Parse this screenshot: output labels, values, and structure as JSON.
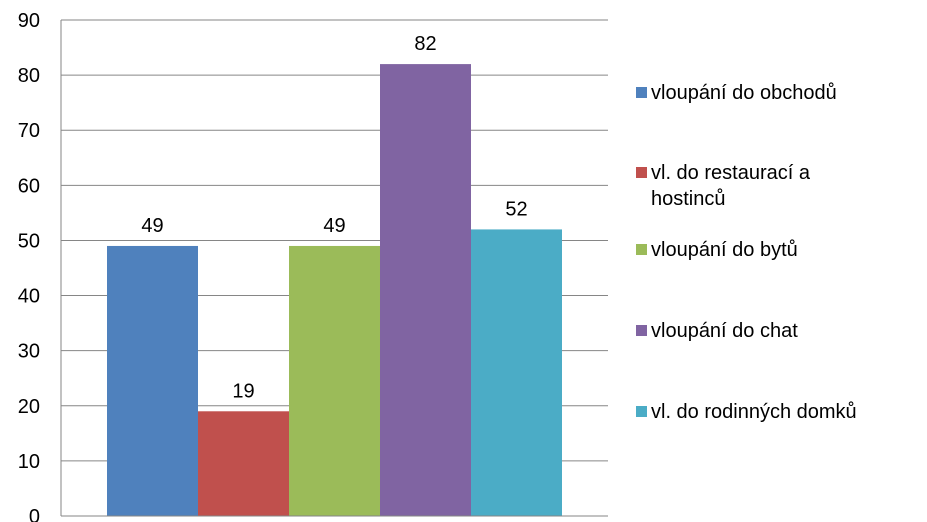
{
  "chart_data": {
    "type": "bar",
    "title": "",
    "xlabel": "",
    "ylabel": "",
    "ylim": [
      0,
      90
    ],
    "yticks": [
      0,
      10,
      20,
      30,
      40,
      50,
      60,
      70,
      80,
      90
    ],
    "grid": true,
    "legend_position": "right",
    "series": [
      {
        "name": "vloupání do obchodů",
        "value": 49,
        "color": "#4F81BD"
      },
      {
        "name": "vl. do restaurací a hostinců",
        "value": 19,
        "color": "#C0504D"
      },
      {
        "name": "vloupání do bytů",
        "value": 49,
        "color": "#9BBB59"
      },
      {
        "name": "vloupání do chat",
        "value": 82,
        "color": "#8064A2"
      },
      {
        "name": "vl. do rodinných domků",
        "value": 52,
        "color": "#4BACC6"
      }
    ]
  }
}
